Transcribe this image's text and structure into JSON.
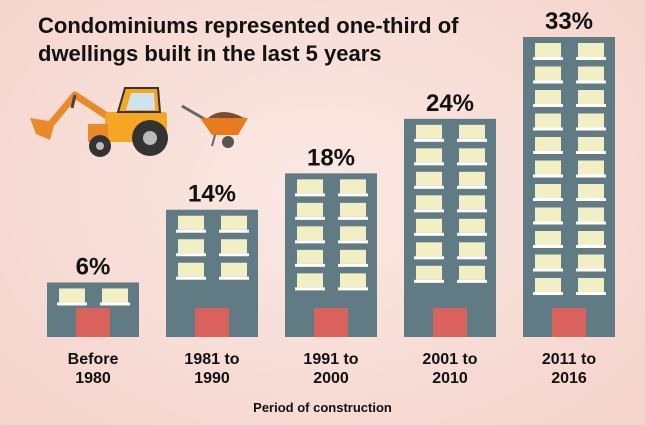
{
  "title_lines": [
    "Condominiums represented one-third of",
    "dwellings built in the last 5 years"
  ],
  "chart_data": {
    "type": "bar",
    "title": "Condominiums represented one-third of dwellings built in the last 5 years",
    "xlabel": "Period of construction",
    "ylabel": "",
    "categories": [
      [
        "Before",
        "1980"
      ],
      [
        "1981 to",
        "1990"
      ],
      [
        "1991 to",
        "2000"
      ],
      [
        "2001 to",
        "2010"
      ],
      [
        "2011 to",
        "2016"
      ]
    ],
    "values": [
      6,
      14,
      18,
      24,
      33
    ],
    "value_labels": [
      "6%",
      "14%",
      "18%",
      "24%",
      "33%"
    ],
    "ylim": [
      0,
      33
    ],
    "colors": {
      "building": "#617b85",
      "window": "#f3efc4",
      "sill": "#ffffff",
      "door": "#d9625d"
    },
    "grid": false,
    "legend": "none"
  },
  "illustration": [
    "backhoe-loader-icon",
    "wheelbarrow-icon"
  ]
}
